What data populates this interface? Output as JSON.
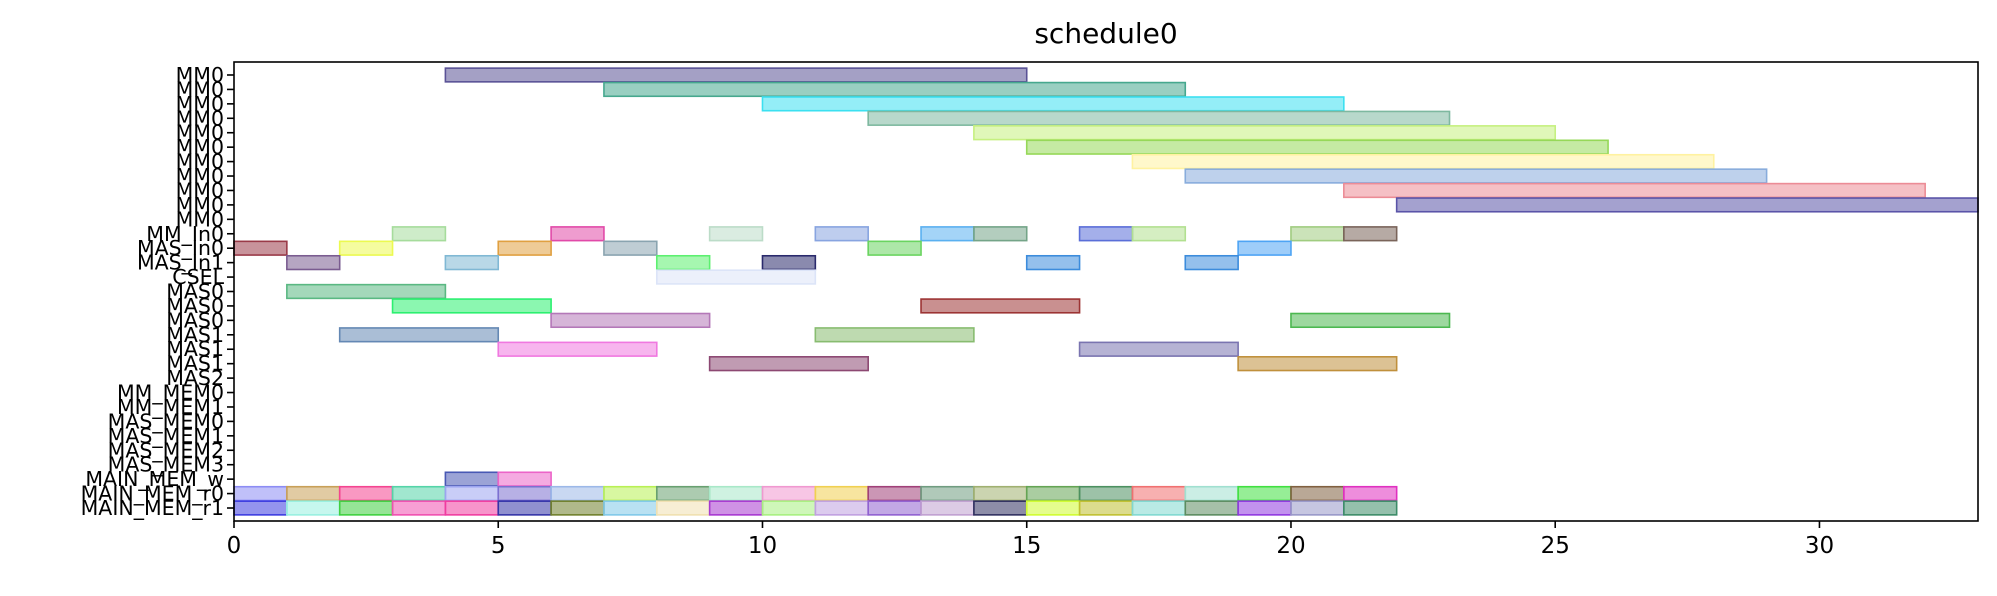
{
  "chart_data": {
    "type": "gantt",
    "title": "schedule0",
    "xlim": [
      0,
      33
    ],
    "x_ticks": [
      0,
      5,
      10,
      15,
      20,
      25,
      30
    ],
    "grid": false,
    "rows": [
      "MM0",
      "MM0",
      "MM0",
      "MM0",
      "MM0",
      "MM0",
      "MM0",
      "MM0",
      "MM0",
      "MM0",
      "MM0",
      "MM_In0",
      "MAS_In0",
      "MAS_In1",
      "CSEL",
      "MAS0",
      "MAS0",
      "MAS0",
      "MAS1",
      "MAS1",
      "MAS1",
      "MAS2",
      "MM_MEM0",
      "MM_MEM1",
      "MAS_MEM0",
      "MAS_MEM1",
      "MAS_MEM2",
      "MAS_MEM3",
      "MAIN_MEM_w",
      "MAIN_MEM_r0",
      "MAIN_MEM_r1"
    ],
    "bars": [
      {
        "row": 0,
        "start": 4,
        "end": 15,
        "color": "#5a5296"
      },
      {
        "row": 1,
        "start": 7,
        "end": 18,
        "color": "#46a88e"
      },
      {
        "row": 2,
        "start": 10,
        "end": 21,
        "color": "#3ce0f0"
      },
      {
        "row": 3,
        "start": 12,
        "end": 23,
        "color": "#7eb8a0"
      },
      {
        "row": 4,
        "start": 14,
        "end": 25,
        "color": "#c6f080"
      },
      {
        "row": 5,
        "start": 15,
        "end": 26,
        "color": "#96d858"
      },
      {
        "row": 6,
        "start": 17,
        "end": 28,
        "color": "#fff2a0"
      },
      {
        "row": 7,
        "start": 18,
        "end": 29,
        "color": "#88acdc"
      },
      {
        "row": 8,
        "start": 21,
        "end": 32,
        "color": "#ec8c96"
      },
      {
        "row": 9,
        "start": 22,
        "end": 33,
        "color": "#5a54a8"
      },
      {
        "row": 11,
        "start": 3,
        "end": 4,
        "color": "#a6dc9c"
      },
      {
        "row": 11,
        "start": 6,
        "end": 7,
        "color": "#e14aa8"
      },
      {
        "row": 11,
        "start": 9,
        "end": 10,
        "color": "#bcdcc8"
      },
      {
        "row": 11,
        "start": 11,
        "end": 12,
        "color": "#88a4e0"
      },
      {
        "row": 11,
        "start": 13,
        "end": 14,
        "color": "#5ab0f0"
      },
      {
        "row": 11,
        "start": 14,
        "end": 15,
        "color": "#74a488"
      },
      {
        "row": 11,
        "start": 16,
        "end": 17,
        "color": "#5a6ed8"
      },
      {
        "row": 11,
        "start": 17,
        "end": 18,
        "color": "#b2e090"
      },
      {
        "row": 11,
        "start": 20,
        "end": 21,
        "color": "#a0cc80"
      },
      {
        "row": 11,
        "start": 21,
        "end": 22,
        "color": "#7a645a"
      },
      {
        "row": 12,
        "start": 0,
        "end": 1,
        "color": "#9a3a48"
      },
      {
        "row": 12,
        "start": 2,
        "end": 3,
        "color": "#ecfa50"
      },
      {
        "row": 12,
        "start": 5,
        "end": 6,
        "color": "#e0a040"
      },
      {
        "row": 12,
        "start": 7,
        "end": 8,
        "color": "#8aa4b0"
      },
      {
        "row": 12,
        "start": 12,
        "end": 13,
        "color": "#6ad460"
      },
      {
        "row": 12,
        "start": 19,
        "end": 20,
        "color": "#4ea4f4"
      },
      {
        "row": 13,
        "start": 1,
        "end": 2,
        "color": "#7a5c90"
      },
      {
        "row": 13,
        "start": 4,
        "end": 5,
        "color": "#80b8d4"
      },
      {
        "row": 13,
        "start": 8,
        "end": 9,
        "color": "#5cf070"
      },
      {
        "row": 13,
        "start": 10,
        "end": 11,
        "color": "#2a2a6c"
      },
      {
        "row": 13,
        "start": 15,
        "end": 16,
        "color": "#3c8cdc"
      },
      {
        "row": 13,
        "start": 18,
        "end": 19,
        "color": "#3c8cdc"
      },
      {
        "row": 14,
        "start": 8,
        "end": 11,
        "color": "#dce4f8"
      },
      {
        "row": 15,
        "start": 1,
        "end": 4,
        "color": "#5ab882"
      },
      {
        "row": 16,
        "start": 3,
        "end": 6,
        "color": "#2cf070"
      },
      {
        "row": 16,
        "start": 13,
        "end": 16,
        "color": "#9c3434"
      },
      {
        "row": 17,
        "start": 6,
        "end": 9,
        "color": "#b478b8"
      },
      {
        "row": 17,
        "start": 20,
        "end": 23,
        "color": "#4cb850"
      },
      {
        "row": 18,
        "start": 2,
        "end": 5,
        "color": "#6488b4"
      },
      {
        "row": 18,
        "start": 11,
        "end": 14,
        "color": "#88bc70"
      },
      {
        "row": 19,
        "start": 5,
        "end": 8,
        "color": "#f078e0"
      },
      {
        "row": 19,
        "start": 16,
        "end": 19,
        "color": "#7a74b0"
      },
      {
        "row": 20,
        "start": 9,
        "end": 12,
        "color": "#8c4872"
      },
      {
        "row": 20,
        "start": 19,
        "end": 22,
        "color": "#c0903c"
      },
      {
        "row": 28,
        "start": 4,
        "end": 5,
        "color": "#4858b4"
      },
      {
        "row": 28,
        "start": 5,
        "end": 6,
        "color": "#ec64c8"
      },
      {
        "row": 29,
        "start": 0,
        "end": 1,
        "color": "#8c8cf4"
      },
      {
        "row": 29,
        "start": 1,
        "end": 2,
        "color": "#c8a058"
      },
      {
        "row": 29,
        "start": 2,
        "end": 3,
        "color": "#f44490"
      },
      {
        "row": 29,
        "start": 3,
        "end": 4,
        "color": "#54d4a8"
      },
      {
        "row": 29,
        "start": 4,
        "end": 5,
        "color": "#9ca4f0"
      },
      {
        "row": 29,
        "start": 5,
        "end": 6,
        "color": "#7c70d0"
      },
      {
        "row": 29,
        "start": 6,
        "end": 7,
        "color": "#9cb8e8"
      },
      {
        "row": 29,
        "start": 7,
        "end": 8,
        "color": "#b8f054"
      },
      {
        "row": 29,
        "start": 8,
        "end": 9,
        "color": "#68a070"
      },
      {
        "row": 29,
        "start": 9,
        "end": 10,
        "color": "#a8e8c8"
      },
      {
        "row": 29,
        "start": 10,
        "end": 11,
        "color": "#f098d0"
      },
      {
        "row": 29,
        "start": 11,
        "end": 12,
        "color": "#f0d050"
      },
      {
        "row": 29,
        "start": 12,
        "end": 13,
        "color": "#a04078"
      },
      {
        "row": 29,
        "start": 13,
        "end": 14,
        "color": "#709c80"
      },
      {
        "row": 29,
        "start": 14,
        "end": 15,
        "color": "#a0b070"
      },
      {
        "row": 29,
        "start": 15,
        "end": 16,
        "color": "#64a454"
      },
      {
        "row": 29,
        "start": 16,
        "end": 17,
        "color": "#4c9060"
      },
      {
        "row": 29,
        "start": 17,
        "end": 18,
        "color": "#f07070"
      },
      {
        "row": 29,
        "start": 18,
        "end": 19,
        "color": "#a0e0d0"
      },
      {
        "row": 29,
        "start": 19,
        "end": 20,
        "color": "#40e040"
      },
      {
        "row": 29,
        "start": 20,
        "end": 21,
        "color": "#806040"
      },
      {
        "row": 29,
        "start": 21,
        "end": 22,
        "color": "#e030c0"
      },
      {
        "row": 30,
        "start": 0,
        "end": 1,
        "color": "#3c3ce0"
      },
      {
        "row": 30,
        "start": 1,
        "end": 2,
        "color": "#98f0e0"
      },
      {
        "row": 30,
        "start": 2,
        "end": 3,
        "color": "#40d040"
      },
      {
        "row": 30,
        "start": 3,
        "end": 4,
        "color": "#f050b0"
      },
      {
        "row": 30,
        "start": 4,
        "end": 5,
        "color": "#f03ca0"
      },
      {
        "row": 30,
        "start": 5,
        "end": 6,
        "color": "#3434a8"
      },
      {
        "row": 30,
        "start": 6,
        "end": 7,
        "color": "#70802c"
      },
      {
        "row": 30,
        "start": 7,
        "end": 8,
        "color": "#80c8e8"
      },
      {
        "row": 30,
        "start": 8,
        "end": 9,
        "color": "#f0e0b0"
      },
      {
        "row": 30,
        "start": 9,
        "end": 10,
        "color": "#a838d0"
      },
      {
        "row": 30,
        "start": 10,
        "end": 11,
        "color": "#a8f080"
      },
      {
        "row": 30,
        "start": 11,
        "end": 12,
        "color": "#c0a0e0"
      },
      {
        "row": 30,
        "start": 12,
        "end": 13,
        "color": "#9060d0"
      },
      {
        "row": 30,
        "start": 13,
        "end": 14,
        "color": "#c0a0d0"
      },
      {
        "row": 30,
        "start": 14,
        "end": 15,
        "color": "#303060"
      },
      {
        "row": 30,
        "start": 15,
        "end": 16,
        "color": "#d0fc30"
      },
      {
        "row": 30,
        "start": 16,
        "end": 17,
        "color": "#c0c030"
      },
      {
        "row": 30,
        "start": 17,
        "end": 18,
        "color": "#80d8d0"
      },
      {
        "row": 30,
        "start": 18,
        "end": 19,
        "color": "#5c8c60"
      },
      {
        "row": 30,
        "start": 19,
        "end": 20,
        "color": "#9038e0"
      },
      {
        "row": 30,
        "start": 20,
        "end": 21,
        "color": "#9898c8"
      },
      {
        "row": 30,
        "start": 21,
        "end": 22,
        "color": "#3c8c68"
      }
    ]
  }
}
